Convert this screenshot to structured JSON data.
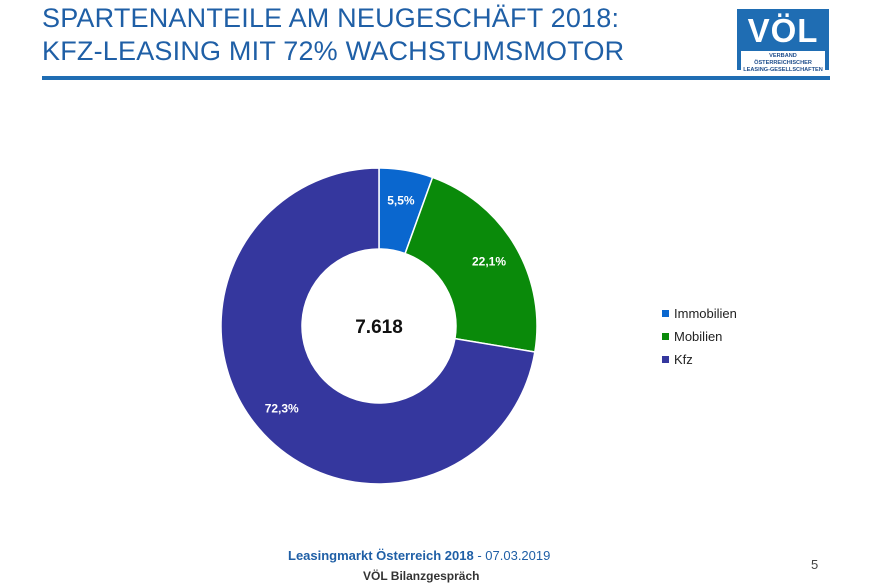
{
  "slide": {
    "title_line1": "SPARTENANTEILE AM NEUGESCHÄFT 2018:",
    "title_line2": "KFZ-LEASING MIT 72% WACHSTUMSMOTOR",
    "logo_text": "VÖL",
    "logo_subtitle_line1": "VERBAND ÖSTERREICHISCHER",
    "logo_subtitle_line2": "LEASING-GESELLSCHAFTEN",
    "footer_bold": "Leasingmarkt Österreich 2018",
    "footer_date": "- 07.03.2019",
    "footer_sub": "VÖL  Bilanzgespräch",
    "page_number": "5",
    "colors": {
      "title": "#1f5fa6",
      "rule": "#1f6db3"
    }
  },
  "chart_data": {
    "type": "pie",
    "donut": true,
    "center_label": "7.618",
    "categories": [
      "Immobilien",
      "Mobilien",
      "Kfz"
    ],
    "values": [
      5.5,
      22.1,
      72.3
    ],
    "data_labels": [
      "5,5%",
      "22,1%",
      "72,3%"
    ],
    "colors": [
      "#0a67cf",
      "#0a8a0a",
      "#35379e"
    ],
    "legend_position": "right",
    "start_angle": "12 o'clock, clockwise"
  }
}
